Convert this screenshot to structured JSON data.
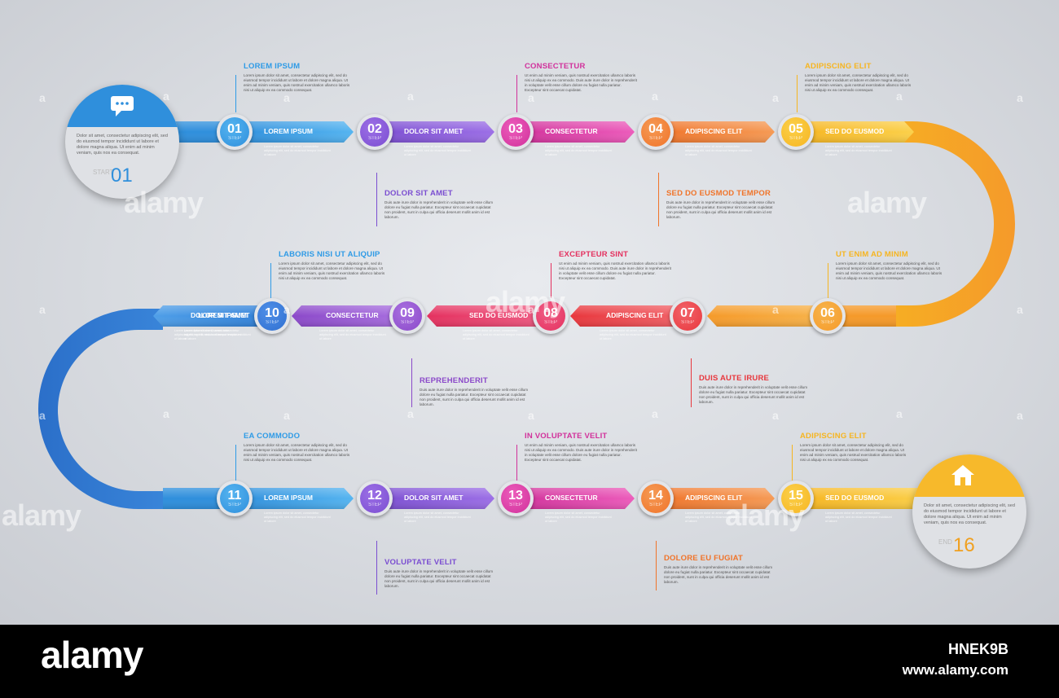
{
  "start_cap": {
    "icon": "chat-bubble-icon",
    "text": "Dolor sit amet, consectetur adipiscing elit, sed do eiusmod tempor incididunt ut labore et dolore magna aliqua. Ut enim ad minim veniam, quis nos ea consequat.",
    "label": "START",
    "number": "01",
    "color": "#2f8fdc"
  },
  "end_cap": {
    "icon": "home-icon",
    "text": "Dolor sit amet, consectetur adipiscing elit, sed do eiusmod tempor incididunt ut labore et dolore magna aliqua. Ut enim ad minim veniam, quis nos ea consequat.",
    "label": "END",
    "number": "16",
    "color": "#f7b92b"
  },
  "steps": [
    {
      "num": "01",
      "step": "STEP",
      "label": "LOREM IPSUM",
      "text": "Lorem ipsum dolor sit amet, consectetur adipiscing elit, sed do eiusmod tempor incididunt ut labore",
      "color": "#2f8fdc",
      "light": "#55b4f0"
    },
    {
      "num": "02",
      "step": "STEP",
      "label": "DOLOR SIT AMET",
      "text": "Lorem ipsum dolor sit amet, consectetur adipiscing elit, sed do eiusmod tempor incididunt ut labore",
      "color": "#7b4ed1",
      "light": "#9c6fe6"
    },
    {
      "num": "03",
      "step": "STEP",
      "label": "CONSECTETUR",
      "text": "Lorem ipsum dolor sit amet, consectetur adipiscing elit, sed do eiusmod tempor incididunt ut labore",
      "color": "#d1319b",
      "light": "#ec5cbb"
    },
    {
      "num": "04",
      "step": "STEP",
      "label": "ADIPISCING ELIT",
      "text": "Lorem ipsum dolor sit amet, consectetur adipiscing elit, sed do eiusmod tempor incididunt ut labore",
      "color": "#f0742a",
      "light": "#f59a55"
    },
    {
      "num": "05",
      "step": "STEP",
      "label": "SED DO EUSMOD",
      "text": "Lorem ipsum dolor sit amet, consectetur adipiscing elit, sed do eiusmod tempor incididunt ut labore",
      "color": "#f6b521",
      "light": "#fbd04a"
    },
    {
      "num": "06",
      "step": "STEP",
      "label": "",
      "text": "",
      "color": "#f59a2a",
      "light": "#f7b44c"
    },
    {
      "num": "07",
      "step": "STEP",
      "label": "ADIPISCING ELIT",
      "text": "Lorem ipsum dolor sit amet, consectetur adipiscing elit, sed do eiusmod tempor incididunt ut labore",
      "color": "#e8373d",
      "light": "#f2646a"
    },
    {
      "num": "08",
      "step": "STEP",
      "label": "SED DO EUSMOD",
      "text": "Lorem ipsum dolor sit amet, consectetur adipiscing elit, sed do eiusmod tempor incididunt ut labore",
      "color": "#e4315f",
      "light": "#f05d85"
    },
    {
      "num": "09",
      "step": "STEP",
      "label": "CONSECTETUR",
      "text": "Lorem ipsum dolor sit amet, consectetur adipiscing elit, sed do eiusmod tempor incididunt ut labore",
      "color": "#8b49c9",
      "light": "#a970e0"
    },
    {
      "num": "10",
      "step": "STEP",
      "label": "DOLOR SIT AMET",
      "text": "Lorem ipsum dolor sit amet, consectetur adipiscing elit, sed do eiusmod tempor incididunt ut labore",
      "color": "#2f6fd0",
      "light": "#4f8fe8"
    },
    {
      "num": "11",
      "step": "STEP",
      "label": "LOREM IPSUM",
      "text": "Lorem ipsum dolor sit amet, consectetur adipiscing elit, sed do eiusmod tempor incididunt ut labore",
      "color": "#2f8fdc",
      "light": "#55b4f0"
    },
    {
      "num": "12",
      "step": "STEP",
      "label": "DOLOR SIT AMET",
      "text": "Lorem ipsum dolor sit amet, consectetur adipiscing elit, sed do eiusmod tempor incididunt ut labore",
      "color": "#7b4ed1",
      "light": "#9c6fe6"
    },
    {
      "num": "13",
      "step": "STEP",
      "label": "CONSECTETUR",
      "text": "Lorem ipsum dolor sit amet, consectetur adipiscing elit, sed do eiusmod tempor incididunt ut labore",
      "color": "#d1319b",
      "light": "#ec5cbb"
    },
    {
      "num": "14",
      "step": "STEP",
      "label": "ADIPISCING ELIT",
      "text": "Lorem ipsum dolor sit amet, consectetur adipiscing elit, sed do eiusmod tempor incididunt ut labore",
      "color": "#f0742a",
      "light": "#f59a55"
    },
    {
      "num": "15",
      "step": "STEP",
      "label": "SED DO EUSMOD",
      "text": "Lorem ipsum dolor sit amet, consectetur adipiscing elit, sed do eiusmod tempor incididunt ut labore",
      "color": "#f6b521",
      "light": "#fbd04a"
    }
  ],
  "row2_first_label": "LOREM IPSUM",
  "row2_first_text": "Lorem ipsum dolor sit amet, consectetur adipiscing elit, sed do eiusmod tempor incididunt ut labore",
  "callouts": [
    {
      "title": "LOREM IPSUM",
      "color": "#2f9be6",
      "text": "Lorem ipsum dolor sit amet, consectetur adipiscing elit, sed do eiusmod tempor incididunt ut labore et dolore magna aliqua. Ut enim ad minim veniam, quis nostrud exercitation ullamco laboris nisi ut aliquip ex ea commodo consequat."
    },
    {
      "title": "CONSECTETUR",
      "color": "#d1319b",
      "text": "Ut enim ad minim veniam, quis nostrud exercitation ullamco laboris nisi ut aliquip ex ea commodo. Duis aute irure dolor in reprehenderit in voluptate velit esse cillum dolore eu fugiat nulla pariatur. Excepteur sint occaecat cupidatat."
    },
    {
      "title": "ADIPISCING ELIT",
      "color": "#f6b521",
      "text": "Lorem ipsum dolor sit amet, consectetur adipiscing elit, sed do eiusmod tempor incididunt ut labore et dolore magna aliqua. Ut enim ad minim veniam, quis nostrud exercitation ullamco laboris nisi ut aliquip ex ea commodo consequat."
    },
    {
      "title": "DOLOR SIT AMET",
      "color": "#7b4ed1",
      "text": "Duis aute irure dolor in reprehenderit in voluptate velit esse cillum dolore eu fugiat nulla pariatur. Excepteur sint occaecat cupidatat non proident, sunt in culpa qui officia deserunt mollit anim id est laborum."
    },
    {
      "title": "SED DO EUSMOD TEMPOR",
      "color": "#f0742a",
      "text": "Duis aute irure dolor in reprehenderit in voluptate velit esse cillum dolore eu fugiat nulla pariatur. Excepteur sint occaecat cupidatat non proident, sunt in culpa qui officia deserunt mollit anim id est laborum."
    },
    {
      "title": "LABORIS NISI UT ALIQUIP",
      "color": "#2f9be6",
      "text": "Lorem ipsum dolor sit amet, consectetur adipiscing elit, sed do eiusmod tempor incididunt ut labore et dolore magna aliqua. Ut enim ad minim veniam, quis nostrud exercitation ullamco laboris nisi ut aliquip ex ea commodo consequat."
    },
    {
      "title": "EXCEPTEUR SINT",
      "color": "#e4315f",
      "text": "Ut enim ad minim veniam, quis nostrud exercitation ullamco laboris nisi ut aliquip ex ea commodo. Duis aute irure dolor in reprehenderit in voluptate velit esse cillum dolore eu fugiat nulla pariatur. Excepteur sint occaecat cupidatat."
    },
    {
      "title": "UT ENIM AD MINIM",
      "color": "#f6b521",
      "text": "Lorem ipsum dolor sit amet, consectetur adipiscing elit, sed do eiusmod tempor incididunt ut labore et dolore magna aliqua. Ut enim ad minim veniam, quis nostrud exercitation ullamco laboris nisi ut aliquip ex ea commodo consequat."
    },
    {
      "title": "REPREHENDERIT",
      "color": "#8b49c9",
      "text": "Duis aute irure dolor in reprehenderit in voluptate velit esse cillum dolore eu fugiat nulla pariatur. Excepteur sint occaecat cupidatat non proident, sunt in culpa qui officia deserunt mollit anim id est laborum."
    },
    {
      "title": "DUIS AUTE IRURE",
      "color": "#e8373d",
      "text": "Duis aute irure dolor in reprehenderit in voluptate velit esse cillum dolore eu fugiat nulla pariatur. Excepteur sint occaecat cupidatat non proident, sunt in culpa qui officia deserunt mollit anim id est laborum."
    },
    {
      "title": "EA COMMODO",
      "color": "#2f9be6",
      "text": "Lorem ipsum dolor sit amet, consectetur adipiscing elit, sed do eiusmod tempor incididunt ut labore et dolore magna aliqua. Ut enim ad minim veniam, quis nostrud exercitation ullamco laboris nisi ut aliquip ex ea commodo consequat."
    },
    {
      "title": "IN VOLUPTATE VELIT",
      "color": "#d1319b",
      "text": "Ut enim ad minim veniam, quis nostrud exercitation ullamco laboris nisi ut aliquip ex ea commodo. Duis aute irure dolor in reprehenderit in voluptate velit esse cillum dolore eu fugiat nulla pariatur. Excepteur sint occaecat cupidatat."
    },
    {
      "title": "ADIPISCING ELIT",
      "color": "#f6b521",
      "text": "Lorem ipsum dolor sit amet, consectetur adipiscing elit, sed do eiusmod tempor incididunt ut labore et dolore magna aliqua. Ut enim ad minim veniam, quis nostrud exercitation ullamco laboris nisi ut aliquip ex ea commodo consequat."
    },
    {
      "title": "VOLUPTATE VELIT",
      "color": "#7b4ed1",
      "text": "Duis aute irure dolor in reprehenderit in voluptate velit esse cillum dolore eu fugiat nulla pariatur. Excepteur sint occaecat cupidatat non proident, sunt in culpa qui officia deserunt mollit anim id est laborum."
    },
    {
      "title": "DOLORE EU FUGIAT",
      "color": "#f0742a",
      "text": "Duis aute irure dolor in reprehenderit in voluptate velit esse cillum dolore eu fugiat nulla pariatur. Excepteur sint occaecat cupidatat non proident, sunt in culpa qui officia deserunt mollit anim id est laborum."
    }
  ],
  "watermark": {
    "brand": "alamy",
    "small": "a",
    "image_id": "HNEK9B",
    "site": "www.alamy.com"
  }
}
